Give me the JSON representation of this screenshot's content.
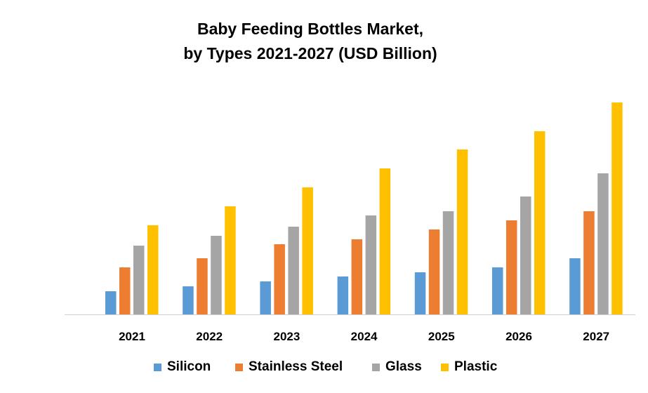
{
  "chart_data": {
    "type": "bar",
    "title": "Baby Feeding Bottles Market, by Types 2021-2027 (USD Billion)",
    "title_lines": [
      "Baby Feeding Bottles Market,",
      "by Types 2021-2027 (USD Billion)"
    ],
    "xlabel": "",
    "ylabel": "",
    "categories": [
      "2021",
      "2022",
      "2023",
      "2024",
      "2025",
      "2026",
      "2027"
    ],
    "series": [
      {
        "name": "Silicon",
        "color": "#5B9BD5",
        "values": [
          33,
          40,
          47,
          54,
          60,
          67,
          80
        ]
      },
      {
        "name": "Stainless Steel",
        "color": "#ED7D31",
        "values": [
          67,
          80,
          100,
          107,
          121,
          134,
          147
        ]
      },
      {
        "name": "Glass",
        "color": "#A5A5A5",
        "values": [
          98,
          112,
          125,
          141,
          147,
          168,
          201
        ]
      },
      {
        "name": "Plastic",
        "color": "#FFC000",
        "values": [
          127,
          154,
          181,
          208,
          235,
          261,
          302
        ]
      }
    ],
    "ylim": [
      0,
      310
    ],
    "y_axis_shown": false,
    "grid": false,
    "legend_position": "bottom"
  }
}
